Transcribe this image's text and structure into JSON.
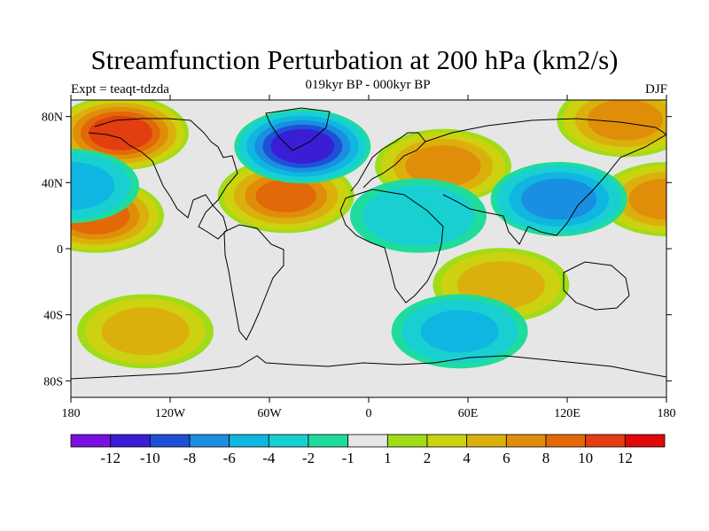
{
  "title": "Streamfunction Perturbation at 200 hPa (km2/s)",
  "subtitle": "019kyr BP - 000kyr BP",
  "experiment": "Expt = teaqt-tdzda",
  "season": "DJF",
  "axes": {
    "lat_labels": [
      "80N",
      "40N",
      "0",
      "40S",
      "80S"
    ],
    "lon_labels": [
      "180",
      "120W",
      "60W",
      "0",
      "60E",
      "120E",
      "180"
    ]
  },
  "colorbar": {
    "colors": [
      "#7a10e0",
      "#3a1ed6",
      "#1e50d8",
      "#1a8ee0",
      "#10b6e2",
      "#18d0d2",
      "#20dc9c",
      "#e6e6e6",
      "#a0dc18",
      "#ccd210",
      "#dcb00c",
      "#e08e0a",
      "#e26808",
      "#e23e10",
      "#e00808"
    ],
    "labels": [
      "-12",
      "-10",
      "-8",
      "-6",
      "-4",
      "-2",
      "-1",
      "1",
      "2",
      "4",
      "6",
      "8",
      "10",
      "12"
    ]
  },
  "chart_data": {
    "type": "heatmap",
    "title": "Streamfunction Perturbation at 200 hPa (km2/s)",
    "subtitle": "019kyr BP - 000kyr BP",
    "xlim": [
      -180,
      180
    ],
    "ylim": [
      -90,
      90
    ],
    "contour_levels": [
      -12,
      -10,
      -8,
      -6,
      -4,
      -2,
      -1,
      1,
      2,
      4,
      6,
      8,
      10,
      12
    ],
    "features": [
      {
        "lon": -150,
        "lat": 70,
        "value": 11
      },
      {
        "lon": -165,
        "lat": 20,
        "value": 9
      },
      {
        "lon": -50,
        "lat": 32,
        "value": 8
      },
      {
        "lon": 45,
        "lat": 50,
        "value": 7
      },
      {
        "lon": 155,
        "lat": 78,
        "value": 7
      },
      {
        "lon": 180,
        "lat": 30,
        "value": 7
      },
      {
        "lon": -135,
        "lat": -50,
        "value": 5
      },
      {
        "lon": 80,
        "lat": -22,
        "value": 5
      },
      {
        "lon": -40,
        "lat": 62,
        "value": -11
      },
      {
        "lon": 115,
        "lat": 30,
        "value": -7
      },
      {
        "lon": -180,
        "lat": 38,
        "value": -5
      },
      {
        "lon": 55,
        "lat": -50,
        "value": -4
      },
      {
        "lon": 30,
        "lat": 20,
        "value": -3
      }
    ]
  }
}
